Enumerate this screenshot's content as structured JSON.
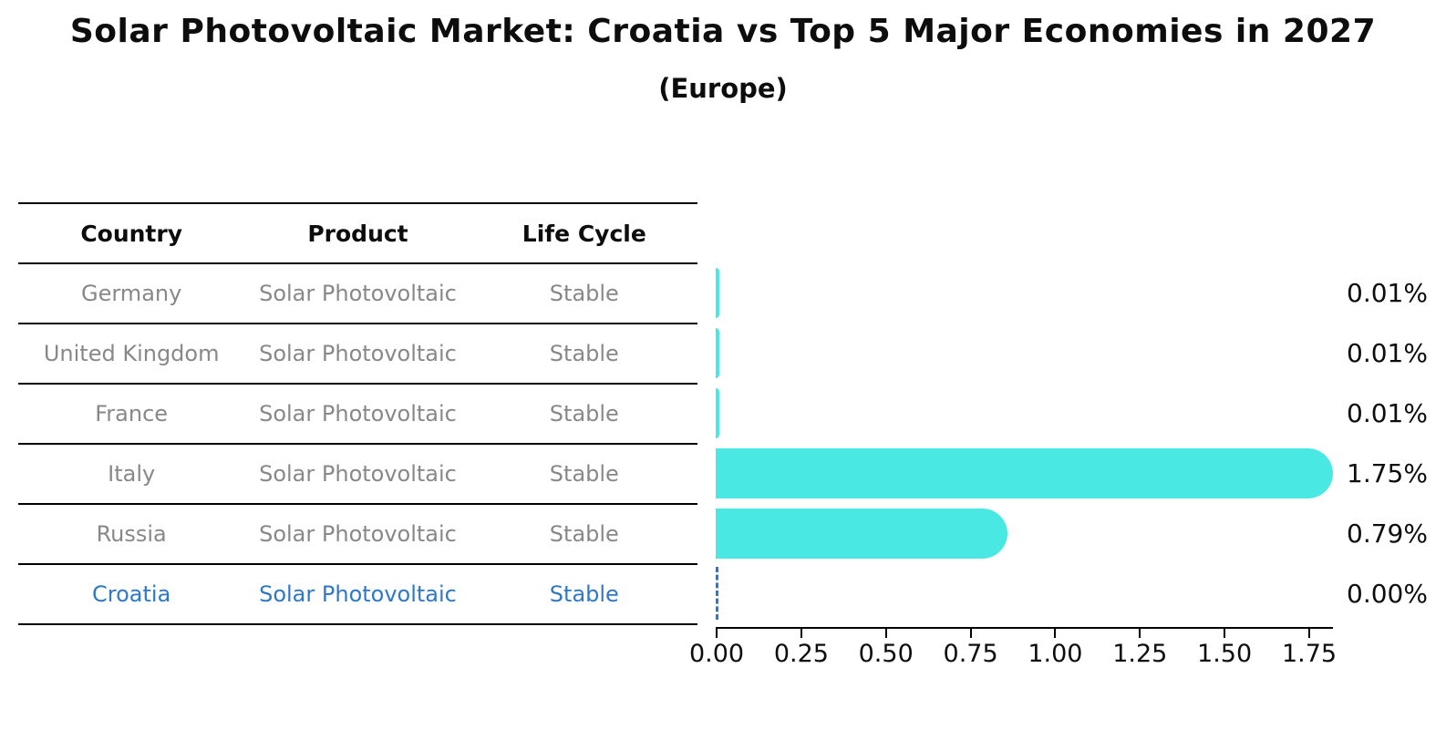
{
  "title": "Solar Photovoltaic Market: Croatia vs Top 5 Major Economies in 2027",
  "subtitle": "(Europe)",
  "table": {
    "headers": [
      "Country",
      "Product",
      "Life Cycle"
    ],
    "rows": [
      {
        "country": "Germany",
        "product": "Solar Photovoltaic",
        "life_cycle": "Stable",
        "highlight": false
      },
      {
        "country": "United Kingdom",
        "product": "Solar Photovoltaic",
        "life_cycle": "Stable",
        "highlight": false
      },
      {
        "country": "France",
        "product": "Solar Photovoltaic",
        "life_cycle": "Stable",
        "highlight": false
      },
      {
        "country": "Italy",
        "product": "Solar Photovoltaic",
        "life_cycle": "Stable",
        "highlight": false
      },
      {
        "country": "Russia",
        "product": "Solar Photovoltaic",
        "life_cycle": "Stable",
        "highlight": false
      },
      {
        "country": "Croatia",
        "product": "Solar Photovoltaic",
        "life_cycle": "Stable",
        "highlight": true
      }
    ]
  },
  "chart_data": {
    "type": "bar",
    "orientation": "horizontal",
    "title": "Solar Photovoltaic Market: Croatia vs Top 5 Major Economies in 2027",
    "subtitle": "(Europe)",
    "categories": [
      "Germany",
      "United Kingdom",
      "France",
      "Italy",
      "Russia",
      "Croatia"
    ],
    "values": [
      0.01,
      0.01,
      0.01,
      1.75,
      0.79,
      0.0
    ],
    "value_labels": [
      "0.01%",
      "0.01%",
      "0.01%",
      "1.75%",
      "0.79%",
      "0.00%"
    ],
    "xlabel": "",
    "ylabel": "",
    "xlim": [
      0,
      1.82
    ],
    "x_ticks": [
      "0.00",
      "0.25",
      "0.50",
      "0.75",
      "1.00",
      "1.25",
      "1.50",
      "1.75"
    ],
    "grid": false,
    "legend": false,
    "bar_color": "#4ae8e3",
    "highlight_color": "#2e78c4",
    "highlight_category": "Croatia",
    "highlight_style": "dashed zero-value marker"
  },
  "colors": {
    "background": "#ffffff",
    "bar": "#4ae8e3",
    "highlight_blue": "#2e78c4",
    "table_text_gray": "#888888",
    "text_black": "#0d0d0d"
  }
}
